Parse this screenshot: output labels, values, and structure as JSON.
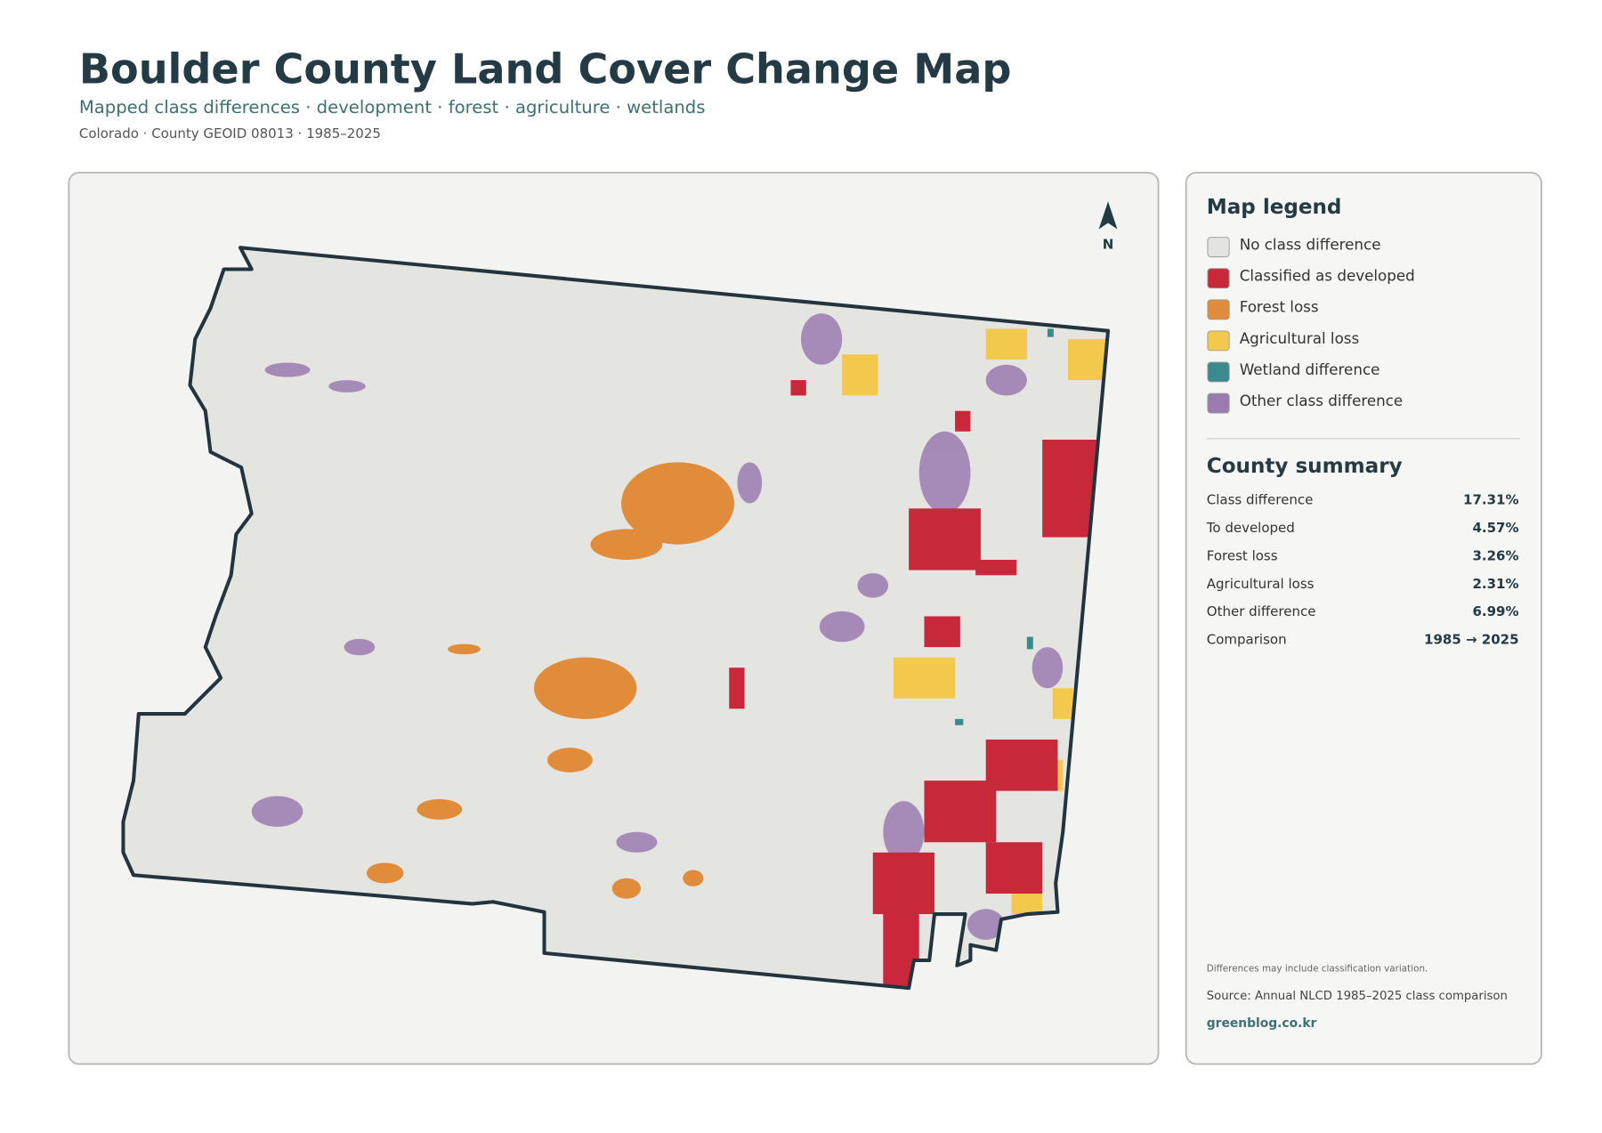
{
  "header": {
    "title": "Boulder County Land Cover Change Map",
    "subtitle": "Mapped class differences · development · forest · agriculture · wetlands",
    "meta": "Colorado · County GEOID 08013 · 1985–2025"
  },
  "map": {
    "north_label": "N"
  },
  "legend": {
    "title": "Map legend",
    "items": [
      {
        "label": "No class difference",
        "color": "#e3e3df"
      },
      {
        "label": "Classified as developed",
        "color": "#c8283a"
      },
      {
        "label": "Forest loss",
        "color": "#e08c3a"
      },
      {
        "label": "Agricultural loss",
        "color": "#f2c94c"
      },
      {
        "label": "Wetland difference",
        "color": "#3a8a8f"
      },
      {
        "label": "Other class difference",
        "color": "#9b7bb0"
      }
    ]
  },
  "summary": {
    "title": "County summary",
    "rows": [
      {
        "label": "Class difference",
        "value": "17.31%"
      },
      {
        "label": "To developed",
        "value": "4.57%"
      },
      {
        "label": "Forest loss",
        "value": "3.26%"
      },
      {
        "label": "Agricultural loss",
        "value": "2.31%"
      },
      {
        "label": "Other difference",
        "value": "6.99%"
      },
      {
        "label": "Comparison",
        "value": "1985 → 2025"
      }
    ]
  },
  "footer": {
    "note": "Differences may include classification variation.",
    "source": "Source: Annual NLCD 1985–2025 class comparison",
    "link": "greenblog.co.kr"
  }
}
